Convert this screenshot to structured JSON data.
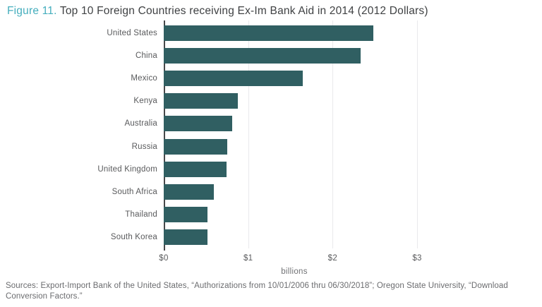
{
  "title": {
    "figure_label": "Figure 11.",
    "text": "Top 10 Foreign Countries receiving Ex-Im Bank Aid in 2014 (2012 Dollars)"
  },
  "chart_data": {
    "type": "bar",
    "orientation": "horizontal",
    "title": "Top 10 Foreign Countries receiving Ex-Im Bank Aid in 2014 (2012 Dollars)",
    "categories": [
      "United States",
      "China",
      "Mexico",
      "Kenya",
      "Australia",
      "Russia",
      "United Kingdom",
      "South Africa",
      "Thailand",
      "South Korea"
    ],
    "values": [
      2.48,
      2.33,
      1.65,
      0.88,
      0.81,
      0.75,
      0.74,
      0.59,
      0.52,
      0.52
    ],
    "xlabel": "billions",
    "ylabel": "",
    "xlim": [
      0,
      3.1
    ],
    "ticks": [
      {
        "value": 0,
        "label": "$0"
      },
      {
        "value": 1,
        "label": "$1"
      },
      {
        "value": 2,
        "label": "$2"
      },
      {
        "value": 3,
        "label": "$3"
      }
    ],
    "grid": "vertical-gridlines-at-dollar-ticks",
    "legend": "none"
  },
  "footer": {
    "sources": "Sources: Export-Import Bank of the United States, “Authorizations from 10/01/2006 thru 06/30/2018”; Oregon State University, “Download Conversion Factors.”"
  },
  "colors": {
    "bar": "#305f62",
    "figure_label_accent": "#45aebd",
    "title_text": "#3f4143",
    "gridline": "#e9e9ec",
    "axis_line": "#47484a",
    "label_text": "#595a5c",
    "sources_text": "#6b6c6f"
  }
}
